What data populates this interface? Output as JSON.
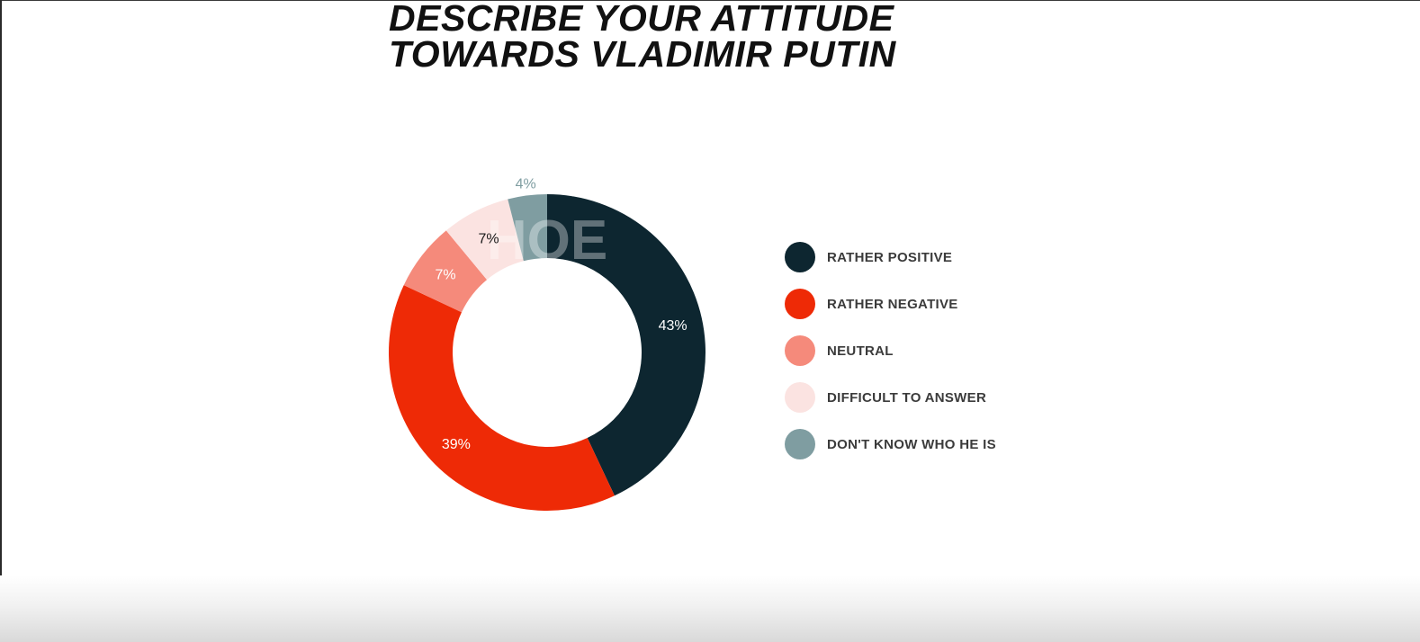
{
  "chart_data": {
    "type": "pie",
    "donut": true,
    "title_lines": [
      "DESCRIBE YOUR ATTITUDE",
      "TOWARDS VLADIMIR PUTIN"
    ],
    "watermark": "НОЕ",
    "legend_position": "right",
    "slices": [
      {
        "name": "RATHER POSITIVE",
        "value": 43,
        "label": "43%",
        "color": "#0d2630",
        "label_color": "#ffffff"
      },
      {
        "name": "RATHER NEGATIVE",
        "value": 39,
        "label": "39%",
        "color": "#ee2a06",
        "label_color": "#ffffff"
      },
      {
        "name": "NEUTRAL",
        "value": 7,
        "label": "7%",
        "color": "#f58a7b",
        "label_color": "#ffffff"
      },
      {
        "name": "DIFFICULT TO ANSWER",
        "value": 7,
        "label": "7%",
        "color": "#fbe3e1",
        "label_color": "#1a1a1a"
      },
      {
        "name": "DON'T KNOW WHO HE IS",
        "value": 4,
        "label": "4%",
        "color": "#7f9da1",
        "label_color": "#7f9da1"
      }
    ]
  }
}
